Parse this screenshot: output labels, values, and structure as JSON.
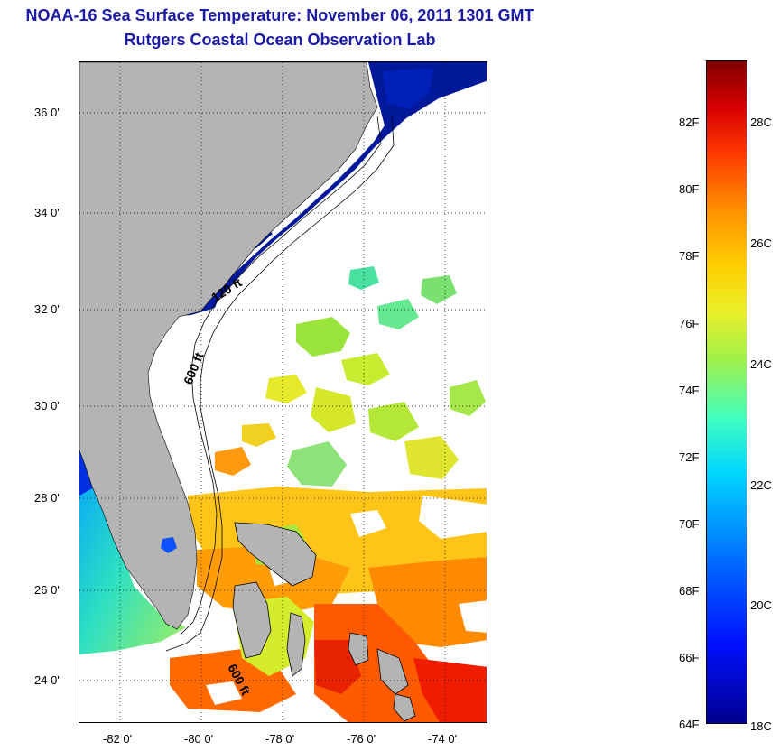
{
  "header": {
    "title": "NOAA-16 Sea Surface Temperature:  November 06, 2011 1301 GMT",
    "subtitle": "Rutgers Coastal Ocean Observation Lab"
  },
  "map": {
    "extent": {
      "lon": [
        -83,
        -73
      ],
      "lat": [
        23,
        37
      ]
    },
    "lat_ticks": [
      {
        "value": 36,
        "label": "36 0'"
      },
      {
        "value": 34,
        "label": "34 0'"
      },
      {
        "value": 32,
        "label": "32 0'"
      },
      {
        "value": 30,
        "label": "30 0'"
      },
      {
        "value": 28,
        "label": "28 0'"
      },
      {
        "value": 26,
        "label": "26 0'"
      },
      {
        "value": 24,
        "label": "24 0'"
      }
    ],
    "lon_ticks": [
      {
        "value": -82,
        "label": "-82 0'"
      },
      {
        "value": -80,
        "label": "-80 0'"
      },
      {
        "value": -78,
        "label": "-78 0'"
      },
      {
        "value": -76,
        "label": "-76 0'"
      },
      {
        "value": -74,
        "label": "-74 0'"
      }
    ],
    "contour_labels": {
      "c120": "120 ft",
      "c600a": "600 ft",
      "c600b": "600 ft"
    },
    "colors": {
      "land": "#b4b4b4",
      "cloud": "#ffffff",
      "grid": "#000000",
      "title": "#1a1aa6"
    }
  },
  "colorbar": {
    "fahrenheit": [
      "82F",
      "80F",
      "78F",
      "76F",
      "74F",
      "72F",
      "70F",
      "68F",
      "66F",
      "64F"
    ],
    "celsius": [
      "28C",
      "26C",
      "24C",
      "22C",
      "20C",
      "18C"
    ]
  }
}
